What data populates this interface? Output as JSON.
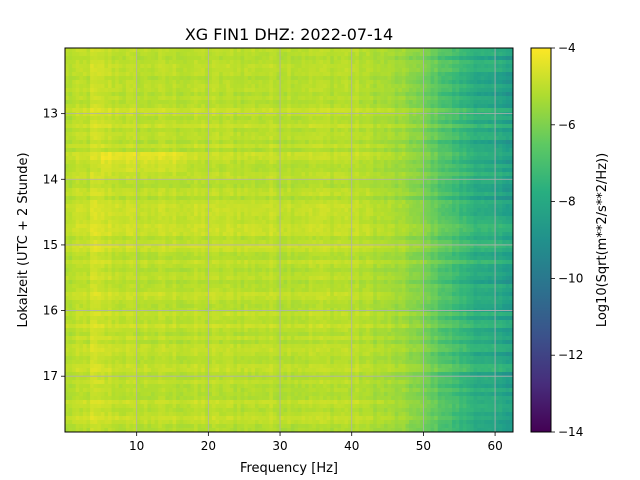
{
  "chart_data": {
    "type": "heatmap",
    "title": "XG FIN1  DHZ: 2022-07-14",
    "xlabel": "Frequency [Hz]",
    "ylabel": "Lokalzeit (UTC + 2 Stunde)",
    "xlim": [
      0,
      62.5
    ],
    "ylim": [
      17.85,
      12.0
    ],
    "xticks": [
      10,
      20,
      30,
      40,
      50,
      60
    ],
    "yticks": [
      13,
      14,
      15,
      16,
      17
    ],
    "grid": true,
    "colormap": "viridis",
    "colorbar": {
      "label": "Log10(Sqrt(m**2/s**2/Hz))",
      "range": [
        -14,
        -4
      ],
      "ticks": [
        -4,
        -6,
        -8,
        -10,
        -12,
        -14
      ]
    },
    "value_profile_by_frequency": {
      "frequency_hz": [
        0,
        5,
        10,
        20,
        30,
        40,
        45,
        48,
        50,
        52,
        55,
        58,
        60,
        62.5
      ],
      "typical_value": [
        -5.1,
        -4.8,
        -5.0,
        -5.0,
        -5.0,
        -5.0,
        -5.3,
        -5.6,
        -6.0,
        -6.5,
        -7.2,
        -7.8,
        -8.0,
        -8.2
      ]
    },
    "features": [
      {
        "time": 15.0,
        "note": "bright horizontal band across all frequencies"
      },
      {
        "time_range": [
          13.6,
          13.9
        ],
        "freq_range": [
          5,
          17
        ],
        "note": "brighter patch"
      }
    ]
  }
}
